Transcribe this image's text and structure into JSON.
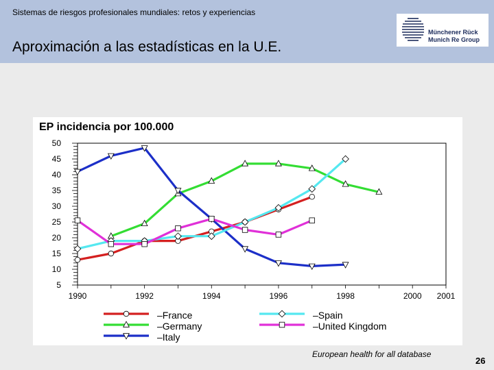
{
  "header": {
    "subtitle": "Sistemas de riesgos profesionales mundiales: retos y experiencias",
    "title": "Aproximación a las estadísticas en la U.E."
  },
  "logo": {
    "line1": "Münchener Rück",
    "line2": "Munich Re Group"
  },
  "footer": {
    "source": "European health for all database",
    "page_number": "26"
  },
  "colors": {
    "header_bg": "#b3c2dd",
    "page_bg": "#ebebeb"
  },
  "chart_data": {
    "type": "line",
    "title": "EP incidencia por 100.000",
    "xlabel": "",
    "ylabel": "",
    "xlim": [
      1990,
      2001
    ],
    "ylim": [
      5,
      50
    ],
    "x_ticks": [
      "1990",
      "1992",
      "1994",
      "1996",
      "1998",
      "2000",
      "2001"
    ],
    "y_ticks": [
      "50",
      "45",
      "40",
      "35",
      "30",
      "25",
      "20",
      "15",
      "10",
      "5"
    ],
    "series": [
      {
        "name": "France",
        "label": "–France",
        "color": "#d42020",
        "marker": "circle",
        "x": [
          1990,
          1991,
          1992,
          1993,
          1994,
          1995,
          1996,
          1997
        ],
        "values": [
          13,
          15,
          19,
          19,
          22,
          25,
          29,
          33
        ]
      },
      {
        "name": "Germany",
        "label": "–Germany",
        "color": "#33dd33",
        "marker": "triangle-up",
        "x": [
          1991,
          1992,
          1993,
          1994,
          1995,
          1996,
          1997,
          1998,
          1999
        ],
        "values": [
          20.5,
          24.5,
          34,
          38,
          43.5,
          43.5,
          42,
          37,
          34.5
        ]
      },
      {
        "name": "Italy",
        "label": "–Italy",
        "color": "#1c2fc8",
        "marker": "triangle-down",
        "x": [
          1990,
          1991,
          1992,
          1993,
          1994,
          1995,
          1996,
          1997,
          1998
        ],
        "values": [
          41,
          46,
          48.5,
          35,
          26,
          16.5,
          12,
          11,
          11.5
        ]
      },
      {
        "name": "Spain",
        "label": "–Spain",
        "color": "#55e8f0",
        "marker": "diamond",
        "x": [
          1990,
          1991,
          1992,
          1993,
          1994,
          1995,
          1996,
          1997,
          1998
        ],
        "values": [
          16.5,
          19,
          19,
          20.5,
          20.5,
          25,
          29.5,
          35.5,
          45
        ]
      },
      {
        "name": "United Kingdom",
        "label": "–United Kingdom",
        "color": "#e030d8",
        "marker": "square",
        "x": [
          1990,
          1991,
          1992,
          1993,
          1994,
          1995,
          1996,
          1997
        ],
        "values": [
          25.5,
          18,
          18,
          23,
          26,
          22.5,
          21,
          25.5
        ]
      }
    ]
  }
}
